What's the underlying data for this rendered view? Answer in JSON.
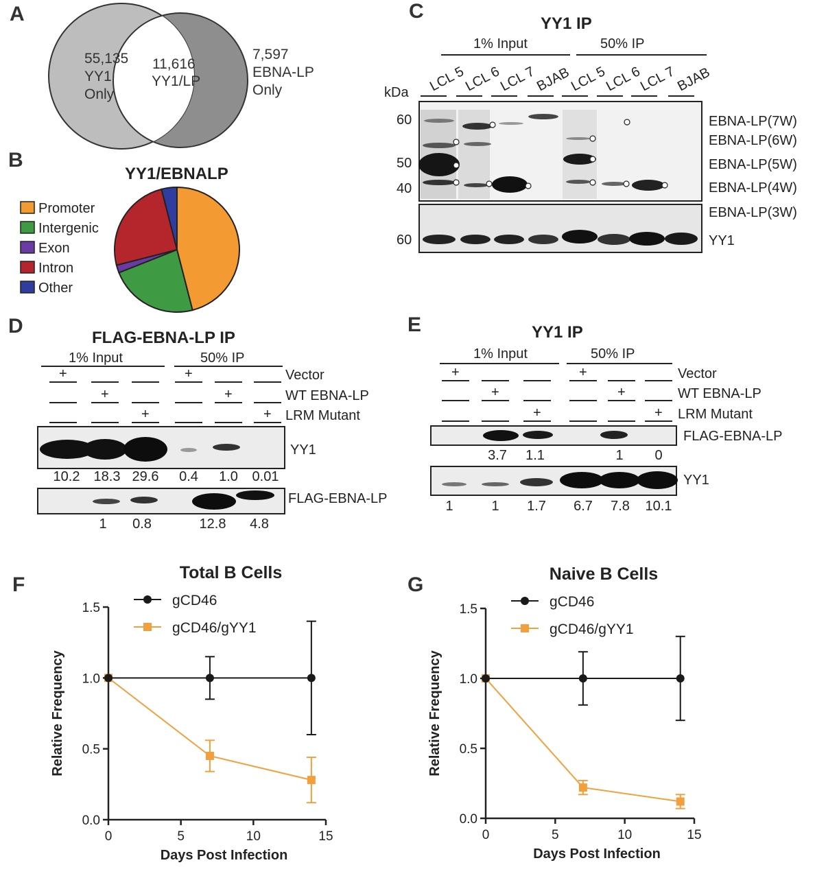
{
  "panels": {
    "a": "A",
    "b": "B",
    "c": "C",
    "d": "D",
    "e": "E",
    "f": "F",
    "g": "G"
  },
  "venn": {
    "left_count": "55,135",
    "left_l1": "YY1",
    "left_l2": "Only",
    "mid_count": "11,616",
    "mid_label": "YY1/LP",
    "right_count": "7,597",
    "right_l1": "EBNA-LP",
    "right_l2": "Only",
    "colors": {
      "left": "#bdbdbd",
      "right": "#8e8e8e",
      "overlap": "#ffffff"
    }
  },
  "pie": {
    "title": "YY1/EBNALP",
    "legend": [
      {
        "label": "Promoter",
        "color": "#f39a32"
      },
      {
        "label": "Intergenic",
        "color": "#3f9a44"
      },
      {
        "label": "Exon",
        "color": "#6a3aa5"
      },
      {
        "label": "Intron",
        "color": "#b5262c"
      },
      {
        "label": "Other",
        "color": "#2f3d9e"
      }
    ],
    "fractions": [
      0.46,
      0.23,
      0.02,
      0.25,
      0.04
    ]
  },
  "blot_c": {
    "title": "YY1 IP",
    "group_input": "1% Input",
    "group_ip": "50% IP",
    "lanes": [
      "LCL 5",
      "LCL 6",
      "LCL 7",
      "BJAB",
      "LCL 5",
      "LCL 6",
      "LCL 7",
      "BJAB"
    ],
    "kda": "kDa",
    "markers": [
      "60",
      "50",
      "40"
    ],
    "yy1_marker": "60",
    "bands": [
      "EBNA-LP(7W)",
      "EBNA-LP(6W)",
      "EBNA-LP(5W)",
      "EBNA-LP(4W)",
      "EBNA-LP(3W)"
    ],
    "yy1_label": "YY1"
  },
  "blot_d": {
    "title": "FLAG-EBNA-LP IP",
    "group_input": "1% Input",
    "group_ip": "50% IP",
    "rows": [
      "Vector",
      "WT EBNA-LP",
      "LRM Mutant"
    ],
    "plus": "+",
    "top_label": "YY1",
    "top_quant": [
      "10.2",
      "18.3",
      "29.6",
      "0.4",
      "1.0",
      "0.01"
    ],
    "bottom_label": "FLAG-EBNA-LP",
    "bottom_quant": [
      "1",
      "0.8",
      "12.8",
      "4.8"
    ]
  },
  "blot_e": {
    "title": "YY1 IP",
    "group_input": "1% Input",
    "group_ip": "50% IP",
    "rows": [
      "Vector",
      "WT EBNA-LP",
      "LRM Mutant"
    ],
    "plus": "+",
    "top_label": "FLAG-EBNA-LP",
    "top_quant": [
      "3.7",
      "1.1",
      "1",
      "0"
    ],
    "bottom_label": "YY1",
    "bottom_quant": [
      "1",
      "1",
      "1.7",
      "6.7",
      "7.8",
      "10.1"
    ]
  },
  "chart_data": [
    {
      "type": "line",
      "title": "Total B Cells",
      "xlabel": "Days Post Infection",
      "ylabel": "Relative Frequency",
      "xlim": [
        0,
        15
      ],
      "ylim": [
        0,
        1.5
      ],
      "xticks": [
        "0",
        "5",
        "10",
        "15"
      ],
      "yticks": [
        "0.0",
        "0.5",
        "1.0",
        "1.5"
      ],
      "legend_position": "top",
      "series": [
        {
          "name": "gCD46",
          "color": "#1a1a1a",
          "marker": "circle",
          "x": [
            0,
            7,
            14
          ],
          "y": [
            1.0,
            1.0,
            1.0
          ],
          "err": [
            0,
            0.15,
            0.4
          ]
        },
        {
          "name": "gCD46/gYY1",
          "color": "#f2a03d",
          "marker": "square",
          "x": [
            0,
            7,
            14
          ],
          "y": [
            1.0,
            0.45,
            0.28
          ],
          "err": [
            0,
            0.11,
            0.16
          ]
        }
      ]
    },
    {
      "type": "line",
      "title": "Naive B Cells",
      "xlabel": "Days Post Infection",
      "ylabel": "Relative Frequency",
      "xlim": [
        0,
        15
      ],
      "ylim": [
        0,
        1.5
      ],
      "xticks": [
        "0",
        "5",
        "10",
        "15"
      ],
      "yticks": [
        "0.0",
        "0.5",
        "1.0",
        "1.5"
      ],
      "legend_position": "top",
      "series": [
        {
          "name": "gCD46",
          "color": "#1a1a1a",
          "marker": "circle",
          "x": [
            0,
            7,
            14
          ],
          "y": [
            1.0,
            1.0,
            1.0
          ],
          "err": [
            0,
            0.19,
            0.3
          ]
        },
        {
          "name": "gCD46/gYY1",
          "color": "#f2a03d",
          "marker": "square",
          "x": [
            0,
            7,
            14
          ],
          "y": [
            1.0,
            0.22,
            0.12
          ],
          "err": [
            0,
            0.05,
            0.05
          ]
        }
      ]
    }
  ]
}
